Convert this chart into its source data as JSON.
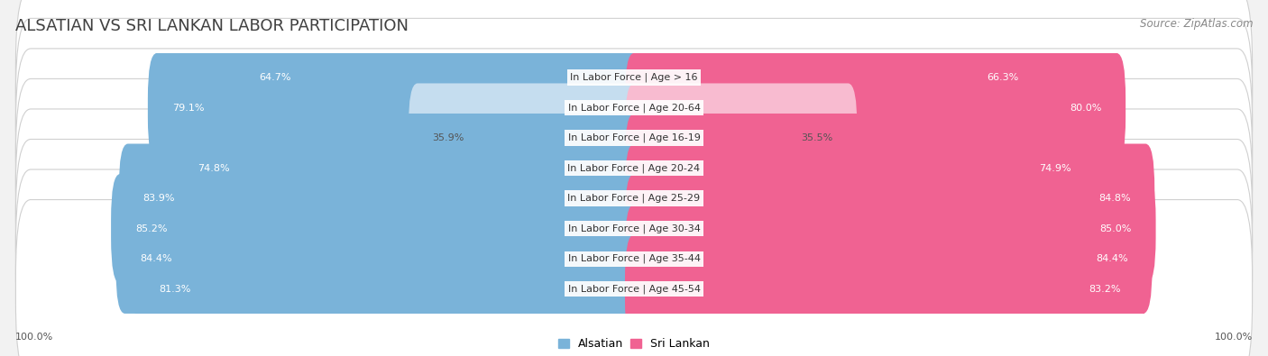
{
  "title": "ALSATIAN VS SRI LANKAN LABOR PARTICIPATION",
  "source": "Source: ZipAtlas.com",
  "categories": [
    "In Labor Force | Age > 16",
    "In Labor Force | Age 20-64",
    "In Labor Force | Age 16-19",
    "In Labor Force | Age 20-24",
    "In Labor Force | Age 25-29",
    "In Labor Force | Age 30-34",
    "In Labor Force | Age 35-44",
    "In Labor Force | Age 45-54"
  ],
  "alsatian_values": [
    64.7,
    79.1,
    35.9,
    74.8,
    83.9,
    85.2,
    84.4,
    81.3
  ],
  "srilankan_values": [
    66.3,
    80.0,
    35.5,
    74.9,
    84.8,
    85.0,
    84.4,
    83.2
  ],
  "alsatian_color_full": "#7ab3d9",
  "alsatian_color_light": "#c5ddef",
  "srilankan_color_full": "#f06292",
  "srilankan_color_light": "#f8bbd0",
  "background_color": "#f2f2f2",
  "row_bg_color": "#e8e8e8",
  "bar_bg_color": "#f5f5f5",
  "max_value": 100.0,
  "bar_height": 0.62,
  "title_fontsize": 13,
  "source_fontsize": 8.5,
  "label_fontsize": 8,
  "value_fontsize": 8,
  "legend_fontsize": 9,
  "bottom_label": "100.0%",
  "light_threshold": 50
}
